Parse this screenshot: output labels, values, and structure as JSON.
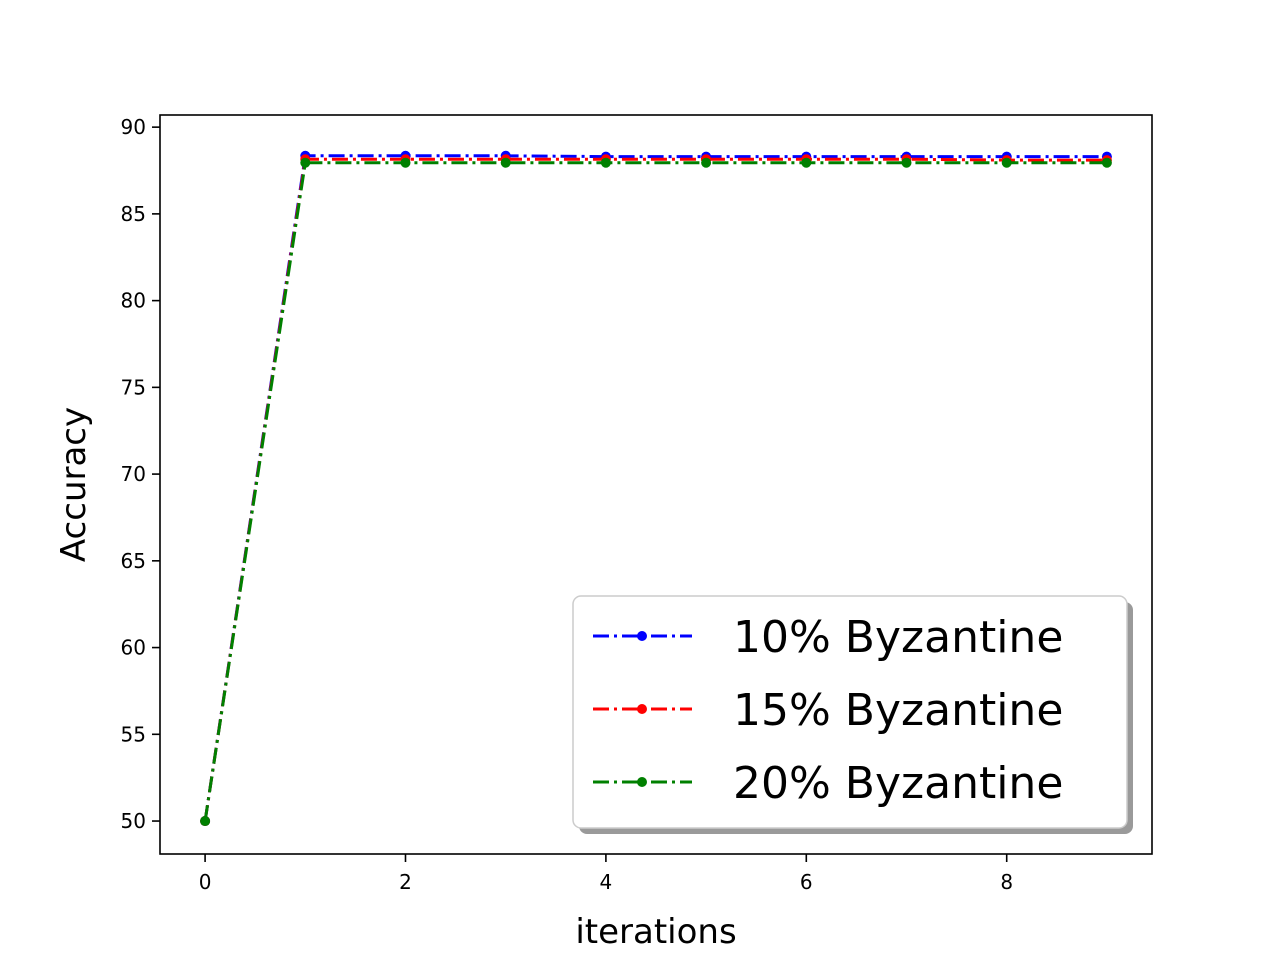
{
  "chart_data": {
    "type": "line",
    "xlabel": "iterations",
    "ylabel": "Accuracy",
    "xlim": [
      -0.45,
      9.45
    ],
    "ylim": [
      48.1,
      90.7
    ],
    "xticks": [
      0,
      2,
      4,
      6,
      8
    ],
    "yticks": [
      50,
      55,
      60,
      65,
      70,
      75,
      80,
      85,
      90
    ],
    "grid": false,
    "legend_position": "lower-right",
    "x": [
      0,
      1,
      2,
      3,
      4,
      5,
      6,
      7,
      8,
      9
    ],
    "series": [
      {
        "name": "10% Byzantine",
        "color": "#0000ff",
        "values": [
          50,
          88.35,
          88.35,
          88.35,
          88.3,
          88.3,
          88.3,
          88.3,
          88.3,
          88.3
        ]
      },
      {
        "name": "15% Byzantine",
        "color": "#ff0000",
        "values": [
          50,
          88.15,
          88.15,
          88.15,
          88.15,
          88.15,
          88.15,
          88.15,
          88.1,
          88.1
        ]
      },
      {
        "name": "20% Byzantine",
        "color": "#008000",
        "values": [
          50,
          87.95,
          87.95,
          87.95,
          87.95,
          87.95,
          87.95,
          87.95,
          87.95,
          87.95
        ]
      }
    ]
  }
}
